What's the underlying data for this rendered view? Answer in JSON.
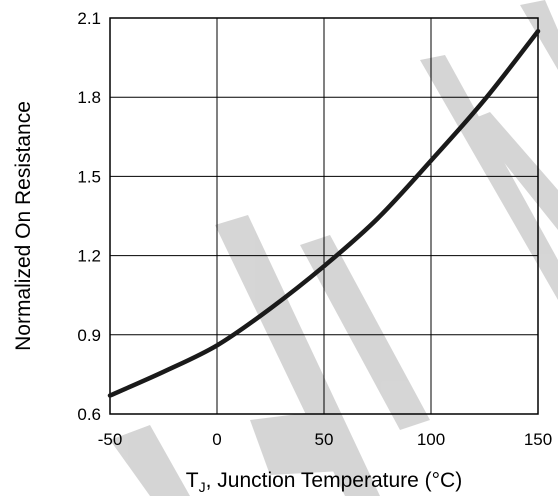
{
  "chart_data": {
    "type": "line",
    "title": "",
    "xlabel": "T",
    "xlabel_sub": "J",
    "xlabel_rest": ", Junction Temperature (°C)",
    "ylabel": "Normalized On Resistance",
    "xlim": [
      -50,
      150
    ],
    "ylim": [
      0.6,
      2.1
    ],
    "x_ticks": [
      -50,
      0,
      50,
      100,
      150
    ],
    "y_ticks": [
      0.6,
      0.9,
      1.2,
      1.5,
      1.8,
      2.1
    ],
    "x_tick_labels": [
      "-50",
      "0",
      "50",
      "100",
      "150"
    ],
    "y_tick_labels": [
      "0.6",
      "0.9",
      "1.2",
      "1.5",
      "1.8",
      "2.1"
    ],
    "grid": true,
    "line_color": "#1a1a1a",
    "series": [
      {
        "x": [
          -50,
          -25,
          0,
          25,
          50,
          75,
          100,
          125,
          150
        ],
        "y": [
          0.67,
          0.76,
          0.86,
          1.0,
          1.16,
          1.34,
          1.56,
          1.79,
          2.05
        ]
      }
    ]
  }
}
